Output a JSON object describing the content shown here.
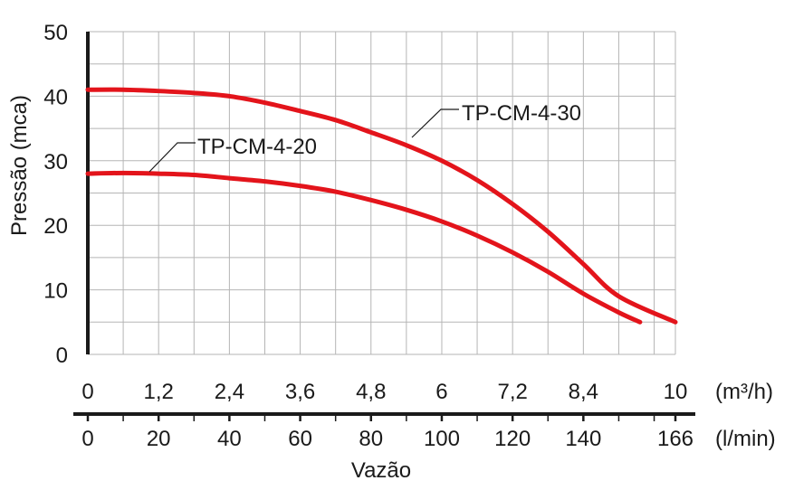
{
  "chart_data": {
    "type": "line",
    "ylabel": "Pressão (mca)",
    "xlabel": "Vazão",
    "ylim": [
      0,
      50
    ],
    "xlim": [
      0,
      166
    ],
    "grid": true,
    "y_ticks": [
      "0",
      "10",
      "20",
      "30",
      "40",
      "50"
    ],
    "x_ticks_m3h": {
      "unit": "(m³/h)",
      "labels": [
        "0",
        "1,2",
        "2,4",
        "3,6",
        "4,8",
        "6",
        "7,2",
        "8,4",
        "10"
      ],
      "lpm_positions": [
        0,
        20,
        40,
        60,
        80,
        100,
        120,
        140,
        166
      ]
    },
    "x_ticks_lmin": {
      "unit": "(l/min)",
      "labels": [
        "0",
        "20",
        "40",
        "60",
        "80",
        "100",
        "120",
        "140",
        "166"
      ],
      "lpm_positions": [
        0,
        20,
        40,
        60,
        80,
        100,
        120,
        140,
        166
      ]
    },
    "series": [
      {
        "name": "TP-CM-4-30",
        "color": "#e3141b",
        "x": [
          0,
          10,
          20,
          30,
          40,
          50,
          60,
          70,
          80,
          90,
          100,
          110,
          120,
          130,
          140,
          150,
          166
        ],
        "y": [
          41,
          41,
          40.8,
          40.5,
          40,
          39,
          37.7,
          36.3,
          34.4,
          32.4,
          30,
          27,
          23.3,
          19,
          14,
          9,
          5
        ]
      },
      {
        "name": "TP-CM-4-20",
        "color": "#e3141b",
        "x": [
          0,
          10,
          20,
          30,
          40,
          50,
          60,
          70,
          80,
          90,
          100,
          110,
          120,
          130,
          140,
          150,
          156
        ],
        "y": [
          28,
          28.1,
          28,
          27.8,
          27.3,
          26.8,
          26.1,
          25.2,
          23.9,
          22.4,
          20.6,
          18.4,
          15.8,
          12.8,
          9.4,
          6.5,
          5
        ]
      }
    ]
  }
}
